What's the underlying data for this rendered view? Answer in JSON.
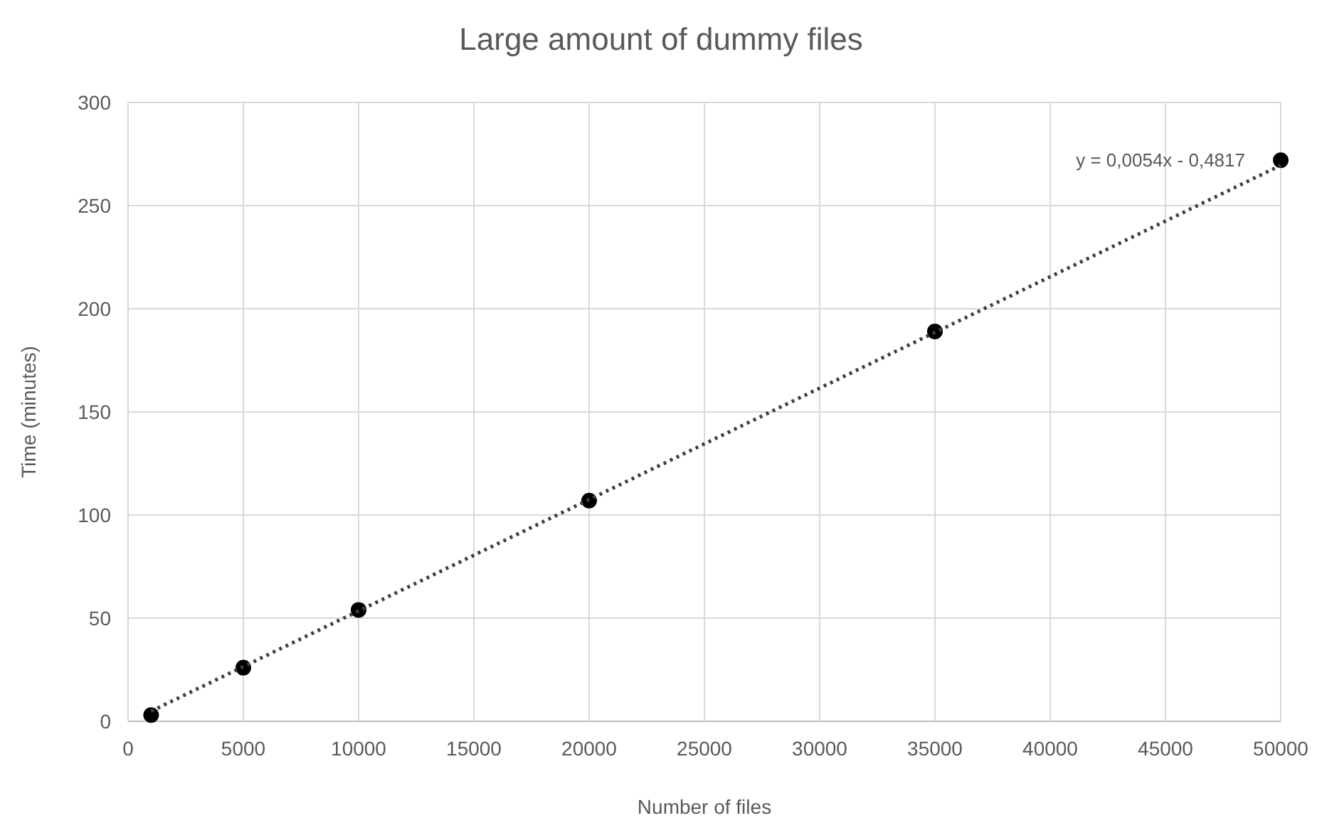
{
  "chart_data": {
    "type": "scatter",
    "title": "Large amount of dummy files",
    "xlabel": "Number  of files",
    "ylabel": "Time  (minutes)",
    "x": [
      1000,
      5000,
      10000,
      20000,
      35000,
      50000
    ],
    "series": [
      {
        "color": "#000000",
        "marker": "circle",
        "values": [
          3,
          26,
          54,
          107,
          189,
          272
        ]
      },
      {
        "type": "line",
        "color": "#404040",
        "marker": "none",
        "line_style": "dotted",
        "x": [
          1000,
          50000
        ],
        "values": [
          4.9,
          269.5
        ]
      }
    ],
    "annotations": [
      "y = 0,0054x - 0,4817"
    ],
    "xlim": [
      0,
      50000
    ],
    "xticks": [
      0,
      5000,
      10000,
      15000,
      20000,
      25000,
      30000,
      35000,
      40000,
      45000,
      50000
    ],
    "ylim": [
      0,
      300
    ],
    "yticks": [
      0,
      50,
      100,
      150,
      200,
      250,
      300
    ],
    "grid": true
  }
}
